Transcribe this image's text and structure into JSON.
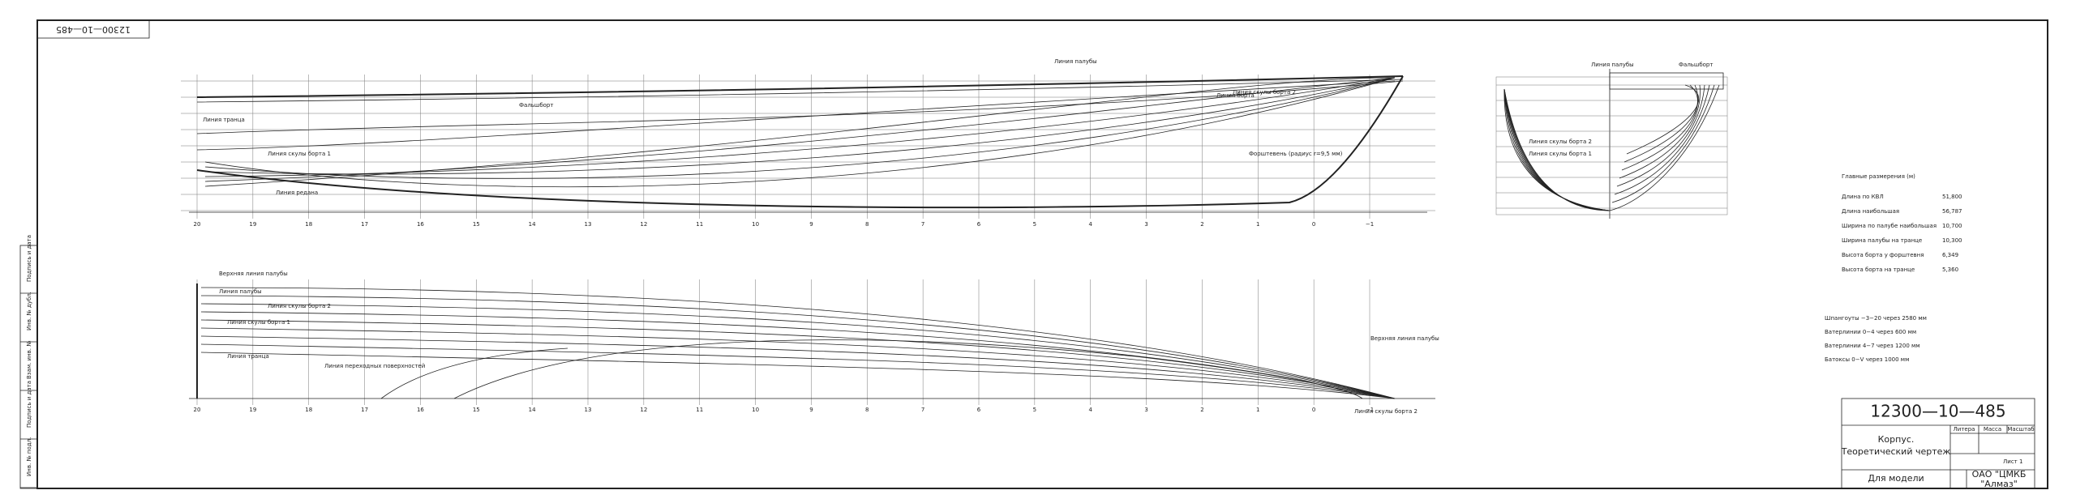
{
  "stamp": "12300—10—485",
  "side_stamp": [
    "Инв. № подл.",
    "Подпись и дата",
    "Взам. инв. №",
    "Инв. № дубл.",
    "Подпись и дата"
  ],
  "profile": {
    "labels": [
      "Линия палубы",
      "Фальшборт",
      "Линия борта",
      "Линия транца",
      "Линия скулы борта 2",
      "Линия скулы борта 1",
      "Линия редана",
      "Форштевень (радиус r=9,5 мм)"
    ],
    "stations": [
      "20",
      "19",
      "18",
      "17",
      "16",
      "15",
      "14",
      "13",
      "12",
      "11",
      "10",
      "9",
      "8",
      "7",
      "6",
      "5",
      "4",
      "3",
      "2",
      "1",
      "0",
      "−1"
    ]
  },
  "plan": {
    "labels": [
      "Верхняя линия палубы",
      "Линия палубы",
      "Линия скулы борта 2",
      "Линия скулы борта 1",
      "Линия транца",
      "Линия переходных поверхностей",
      "Верхняя линия палубы",
      "Линия скулы борта 2"
    ]
  },
  "body_plan": {
    "labels": [
      "Линия палубы",
      "Фальшборт",
      "Линия скулы борта 2",
      "Линия скулы борта 1"
    ]
  },
  "main_dimensions": {
    "title": "Главные размерения (м)",
    "rows": [
      [
        "Длина по КВЛ",
        "51,800"
      ],
      [
        "Длина наибольшая",
        "56,787"
      ],
      [
        "Ширина по палубе наибольшая",
        "10,700"
      ],
      [
        "Ширина палубы на транце",
        "10,300"
      ],
      [
        "Высота борта у форштевня",
        "6,349"
      ],
      [
        "Высота борта на транце",
        "5,360"
      ]
    ]
  },
  "notes": [
    "Шпангоуты −3−20 через 2580 мм",
    "Ватерлинии 0−4 через 600 мм",
    "Ватерлинии 4−7 через 1200 мм",
    "Батоксы 0−V через 1000 мм"
  ],
  "title_block": {
    "number": "12300—10—485",
    "name": [
      "Корпус.",
      "Теоретический чертеж"
    ],
    "purpose": "Для модели",
    "headers": [
      "Литера",
      "Масса",
      "Масштаб"
    ],
    "sheet": "Лист 1",
    "company": [
      "ОАО \"ЦМКБ",
      "\"Алмаз\""
    ]
  }
}
